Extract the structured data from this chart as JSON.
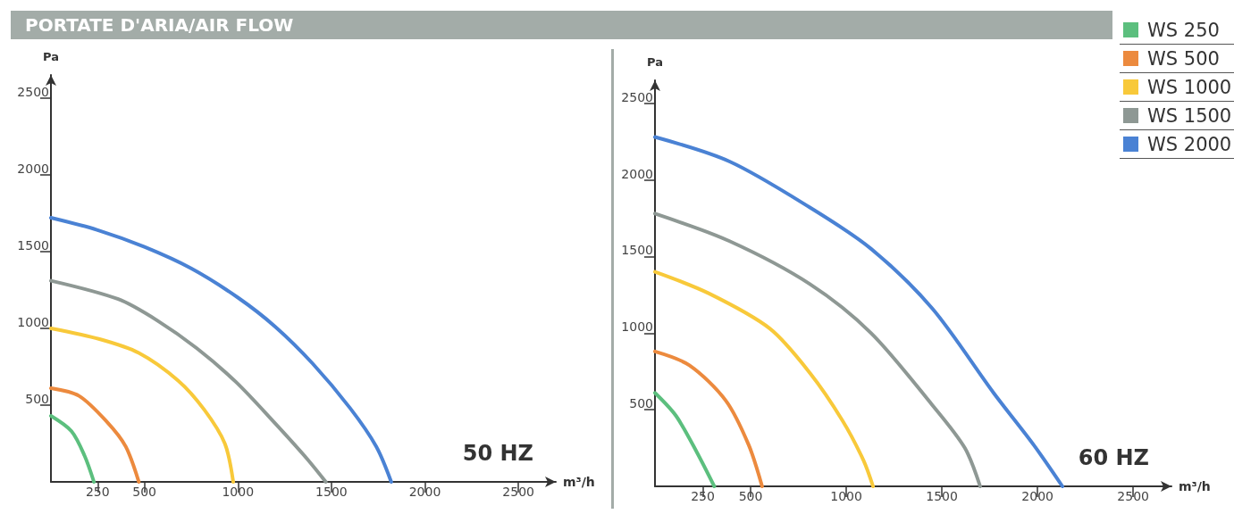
{
  "chart_data": [
    {
      "type": "line",
      "title": "PORTATE D'ARIA/AIR FLOW",
      "xlabel": "m³/h",
      "ylabel": "Pa",
      "annotations": [
        "50 HZ"
      ],
      "legend": "top right",
      "marker": "none",
      "grid": false,
      "xlim": [
        0,
        2700
      ],
      "ylim": [
        0,
        2650
      ],
      "xticks": [
        250,
        500,
        1000,
        1500,
        2000,
        2500
      ],
      "yticks": [
        500,
        1000,
        1500,
        2000,
        2500
      ],
      "series": [
        {
          "name": "WS 250",
          "color": "#5cbf7e",
          "x": [
            0,
            110,
            180,
            230
          ],
          "values": [
            430,
            330,
            170,
            0
          ]
        },
        {
          "name": "WS 500",
          "color": "#ec8a3e",
          "x": [
            0,
            150,
            300,
            400,
            470
          ],
          "values": [
            610,
            560,
            390,
            230,
            0
          ]
        },
        {
          "name": "WS 1000",
          "color": "#f8c93a",
          "x": [
            0,
            260,
            470,
            680,
            820,
            930,
            975
          ],
          "values": [
            1000,
            930,
            840,
            660,
            470,
            250,
            0
          ]
        },
        {
          "name": "WS 1500",
          "color": "#8e9894",
          "x": [
            0,
            360,
            570,
            780,
            990,
            1200,
            1370,
            1470
          ],
          "values": [
            1310,
            1190,
            1050,
            870,
            650,
            380,
            150,
            0
          ]
        },
        {
          "name": "WS 2000",
          "color": "#4a82d4",
          "x": [
            0,
            250,
            500,
            750,
            1000,
            1200,
            1400,
            1600,
            1740,
            1820
          ],
          "values": [
            1720,
            1640,
            1530,
            1390,
            1200,
            1010,
            770,
            480,
            230,
            0
          ]
        }
      ]
    },
    {
      "type": "line",
      "xlabel": "m³/h",
      "ylabel": "Pa",
      "annotations": [
        "60 HZ"
      ],
      "marker": "none",
      "grid": false,
      "xlim": [
        0,
        2700
      ],
      "ylim": [
        0,
        2650
      ],
      "xticks": [
        250,
        500,
        1000,
        1500,
        2000,
        2500
      ],
      "yticks": [
        500,
        1000,
        1500,
        2000,
        2500
      ],
      "series": [
        {
          "color": "#5cbf7e",
          "x": [
            0,
            110,
            220,
            310
          ],
          "values": [
            610,
            460,
            220,
            0
          ]
        },
        {
          "color": "#ec8a3e",
          "x": [
            0,
            180,
            370,
            490,
            560
          ],
          "values": [
            880,
            790,
            560,
            270,
            0
          ]
        },
        {
          "color": "#f8c93a",
          "x": [
            0,
            280,
            600,
            810,
            980,
            1090,
            1140
          ],
          "values": [
            1400,
            1260,
            1030,
            740,
            430,
            170,
            0
          ]
        },
        {
          "color": "#8e9894",
          "x": [
            0,
            390,
            810,
            1130,
            1450,
            1620,
            1700
          ],
          "values": [
            1780,
            1600,
            1320,
            1000,
            530,
            250,
            0
          ]
        },
        {
          "color": "#4a82d4",
          "x": [
            0,
            390,
            810,
            1130,
            1450,
            1770,
            1980,
            2130
          ],
          "values": [
            2280,
            2120,
            1820,
            1550,
            1160,
            610,
            270,
            0
          ]
        }
      ]
    }
  ]
}
